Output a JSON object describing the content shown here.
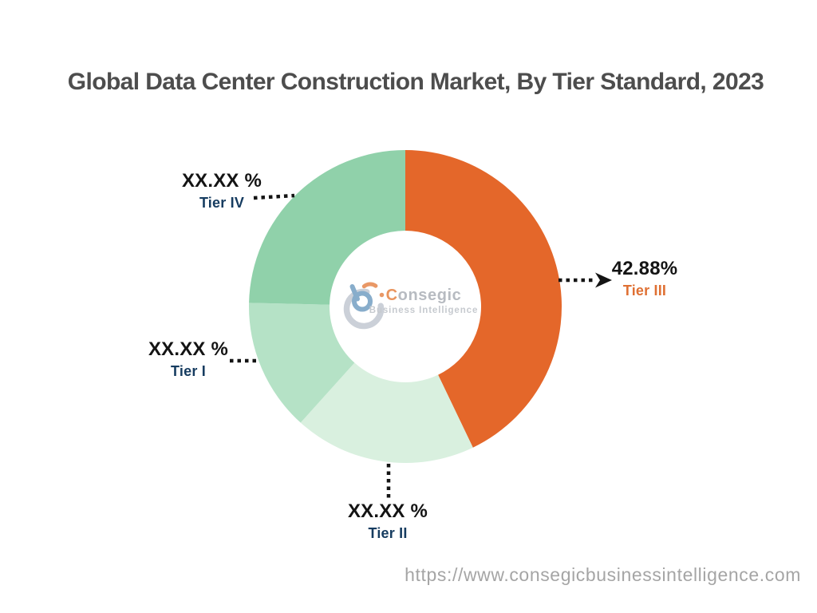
{
  "title": "Global Data Center Construction Market, By Tier Standard, 2023",
  "watermark": {
    "brand_initial": "C",
    "brand_rest": "onsegic",
    "tagline": "Business Intelligence"
  },
  "footer": {
    "url": "https://www.consegicbusinessintelligence.com"
  },
  "colors": {
    "title_text": "#4d4d4d",
    "value_text": "#141414",
    "navy_label": "#163c60",
    "orange_accent": "#e4672a",
    "url_text": "#a5a5a5",
    "leader_line": "#141414"
  },
  "chart_data": {
    "type": "pie",
    "subtype": "donut",
    "title": "Global Data Center Construction Market, By Tier Standard, 2023",
    "start_angle_deg": 0,
    "direction": "clockwise",
    "legend_position": "callout-labels",
    "segments": [
      {
        "label": "Tier III",
        "display_value": "42.88%",
        "value_pct": 42.88,
        "color": "#e4672a",
        "label_color": "#df7033"
      },
      {
        "label": "Tier II",
        "display_value": "XX.XX %",
        "value_pct": 18.8,
        "color": "#d9f0df",
        "label_color": "#163c60"
      },
      {
        "label": "Tier I",
        "display_value": "XX.XX %",
        "value_pct": 13.7,
        "color": "#b5e2c6",
        "label_color": "#163c60"
      },
      {
        "label": "Tier IV",
        "display_value": "XX.XX %",
        "value_pct": 24.62,
        "color": "#90d1aa",
        "label_color": "#163c60"
      }
    ]
  }
}
